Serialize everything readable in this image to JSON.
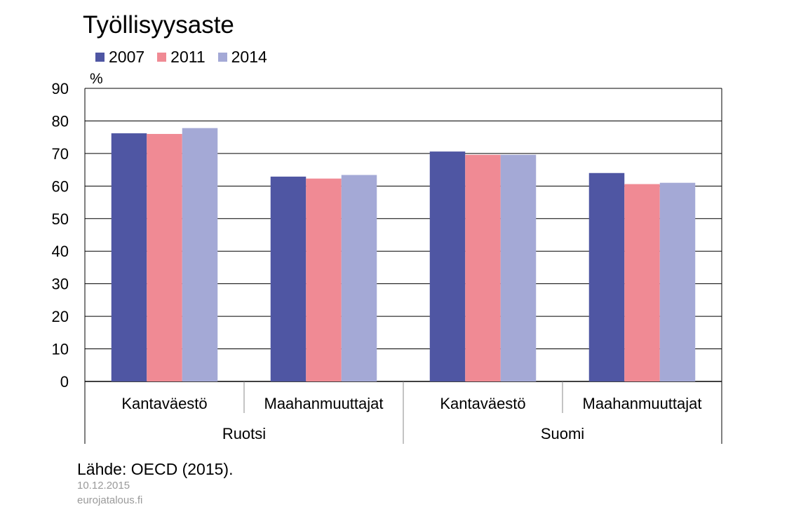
{
  "colors": {
    "2007": "#4f56a3",
    "2011": "#f08a94",
    "2014": "#a4a9d6"
  },
  "chart_data": {
    "type": "bar",
    "title": "Työllisyysaste",
    "ylabel": "%",
    "ylim": [
      0,
      90
    ],
    "yticks": [
      0,
      10,
      20,
      30,
      40,
      50,
      60,
      70,
      80,
      90
    ],
    "grid": true,
    "legend_position": "top-left",
    "categories": [
      "Kantaväestö",
      "Maahanmuuttajat",
      "Kantaväestö",
      "Maahanmuuttajat"
    ],
    "groups": [
      "Ruotsi",
      "Suomi"
    ],
    "series": [
      {
        "name": "2007",
        "values": [
          76.2,
          62.9,
          70.6,
          64.0
        ]
      },
      {
        "name": "2011",
        "values": [
          76.0,
          62.3,
          69.6,
          60.6
        ]
      },
      {
        "name": "2014",
        "values": [
          77.8,
          63.4,
          69.6,
          61.0
        ]
      }
    ]
  },
  "footer": {
    "source": "Lähde: OECD (2015).",
    "date": "10.12.2015",
    "site": "eurojatalous.fi"
  }
}
